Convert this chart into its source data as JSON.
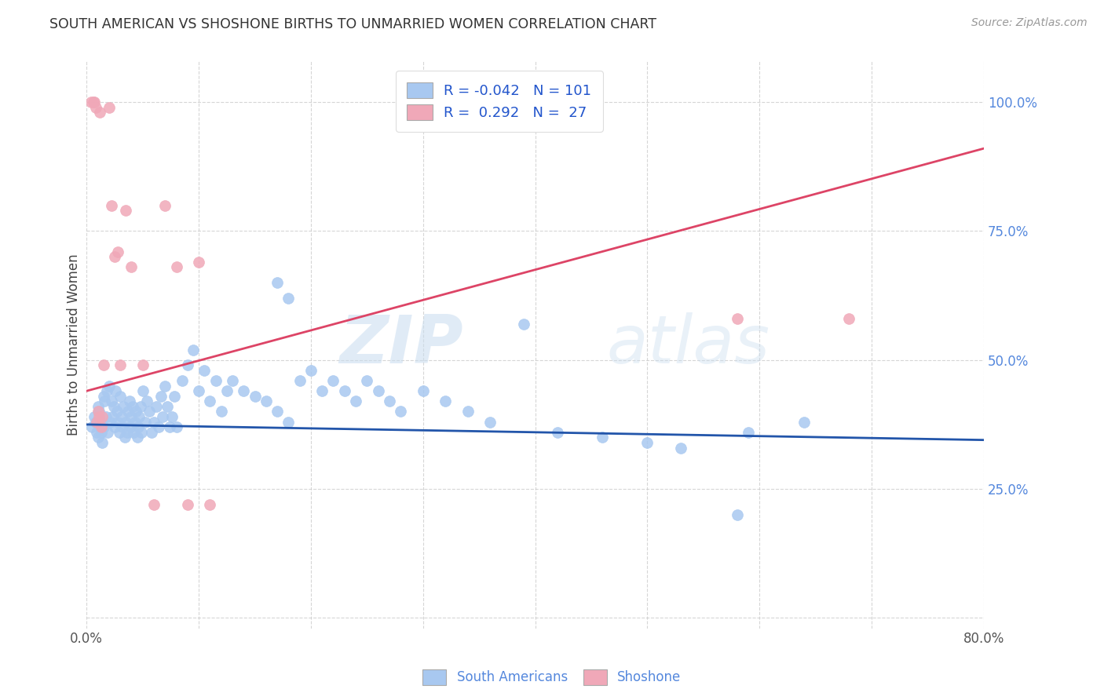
{
  "title": "SOUTH AMERICAN VS SHOSHONE BIRTHS TO UNMARRIED WOMEN CORRELATION CHART",
  "source": "Source: ZipAtlas.com",
  "ylabel": "Births to Unmarried Women",
  "xlim": [
    0.0,
    0.8
  ],
  "ylim": [
    -0.02,
    1.08
  ],
  "yticks": [
    0.0,
    0.25,
    0.5,
    0.75,
    1.0
  ],
  "ytick_labels": [
    "",
    "25.0%",
    "50.0%",
    "75.0%",
    "100.0%"
  ],
  "xticks": [
    0.0,
    0.1,
    0.2,
    0.3,
    0.4,
    0.5,
    0.6,
    0.7,
    0.8
  ],
  "legend_R_blue": "-0.042",
  "legend_N_blue": "101",
  "legend_R_pink": "0.292",
  "legend_N_pink": "27",
  "blue_color": "#A8C8F0",
  "pink_color": "#F0A8B8",
  "blue_line_color": "#2255AA",
  "pink_line_color": "#DD4466",
  "watermark_zip": "ZIP",
  "watermark_atlas": "atlas",
  "blue_line_x0": 0.0,
  "blue_line_y0": 0.375,
  "blue_line_x1": 0.8,
  "blue_line_y1": 0.345,
  "pink_line_x0": 0.0,
  "pink_line_y0": 0.44,
  "pink_line_x1": 0.8,
  "pink_line_y1": 0.91,
  "blue_scatter_x": [
    0.005,
    0.007,
    0.008,
    0.009,
    0.01,
    0.01,
    0.011,
    0.012,
    0.013,
    0.014,
    0.015,
    0.015,
    0.016,
    0.017,
    0.018,
    0.019,
    0.02,
    0.021,
    0.022,
    0.023,
    0.024,
    0.025,
    0.026,
    0.027,
    0.028,
    0.029,
    0.03,
    0.031,
    0.032,
    0.033,
    0.034,
    0.035,
    0.036,
    0.037,
    0.038,
    0.039,
    0.04,
    0.041,
    0.042,
    0.043,
    0.044,
    0.045,
    0.046,
    0.047,
    0.048,
    0.049,
    0.05,
    0.052,
    0.054,
    0.056,
    0.058,
    0.06,
    0.062,
    0.064,
    0.066,
    0.068,
    0.07,
    0.072,
    0.074,
    0.076,
    0.078,
    0.08,
    0.085,
    0.09,
    0.095,
    0.1,
    0.105,
    0.11,
    0.115,
    0.12,
    0.125,
    0.13,
    0.14,
    0.15,
    0.16,
    0.17,
    0.18,
    0.19,
    0.2,
    0.21,
    0.22,
    0.23,
    0.24,
    0.25,
    0.26,
    0.27,
    0.28,
    0.3,
    0.32,
    0.34,
    0.36,
    0.39,
    0.42,
    0.46,
    0.5,
    0.53,
    0.59,
    0.64,
    0.58,
    0.17,
    0.18
  ],
  "blue_scatter_y": [
    0.37,
    0.39,
    0.38,
    0.36,
    0.41,
    0.35,
    0.4,
    0.38,
    0.36,
    0.34,
    0.43,
    0.37,
    0.42,
    0.39,
    0.44,
    0.36,
    0.45,
    0.38,
    0.42,
    0.39,
    0.41,
    0.37,
    0.44,
    0.4,
    0.38,
    0.36,
    0.43,
    0.39,
    0.37,
    0.41,
    0.35,
    0.38,
    0.36,
    0.4,
    0.42,
    0.37,
    0.39,
    0.41,
    0.36,
    0.38,
    0.4,
    0.35,
    0.37,
    0.39,
    0.41,
    0.36,
    0.44,
    0.38,
    0.42,
    0.4,
    0.36,
    0.38,
    0.41,
    0.37,
    0.43,
    0.39,
    0.45,
    0.41,
    0.37,
    0.39,
    0.43,
    0.37,
    0.46,
    0.49,
    0.52,
    0.44,
    0.48,
    0.42,
    0.46,
    0.4,
    0.44,
    0.46,
    0.44,
    0.43,
    0.42,
    0.65,
    0.62,
    0.46,
    0.48,
    0.44,
    0.46,
    0.44,
    0.42,
    0.46,
    0.44,
    0.42,
    0.4,
    0.44,
    0.42,
    0.4,
    0.38,
    0.57,
    0.36,
    0.35,
    0.34,
    0.33,
    0.36,
    0.38,
    0.2,
    0.4,
    0.38
  ],
  "pink_scatter_x": [
    0.004,
    0.006,
    0.007,
    0.008,
    0.009,
    0.01,
    0.011,
    0.012,
    0.013,
    0.014,
    0.015,
    0.02,
    0.022,
    0.025,
    0.028,
    0.03,
    0.035,
    0.04,
    0.05,
    0.06,
    0.07,
    0.08,
    0.09,
    0.1,
    0.11,
    0.58,
    0.68
  ],
  "pink_scatter_y": [
    1.0,
    1.0,
    1.0,
    0.99,
    0.38,
    0.4,
    0.39,
    0.98,
    0.37,
    0.39,
    0.49,
    0.99,
    0.8,
    0.7,
    0.71,
    0.49,
    0.79,
    0.68,
    0.49,
    0.22,
    0.8,
    0.68,
    0.22,
    0.69,
    0.22,
    0.58,
    0.58
  ]
}
